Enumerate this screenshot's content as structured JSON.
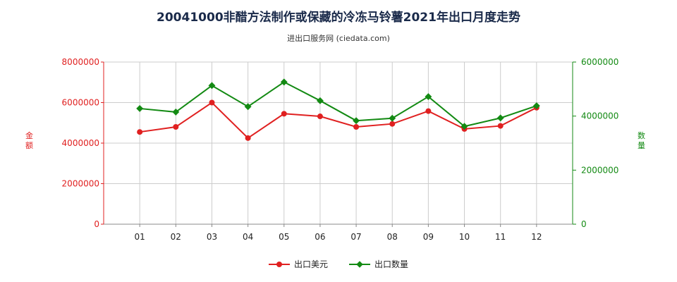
{
  "header": {
    "title": "20041000非醋方法制作或保藏的冷冻马铃薯2021年出口月度走势",
    "subtitle": "进出口服务网 (ciedata.com)"
  },
  "axes": {
    "left_label": "金额",
    "right_label": "数量"
  },
  "colors": {
    "left_series": "#e02020",
    "right_series": "#138a13",
    "grid": "#cccccc"
  },
  "chart_data": {
    "type": "line",
    "categories": [
      "01",
      "02",
      "03",
      "04",
      "05",
      "06",
      "07",
      "08",
      "09",
      "10",
      "11",
      "12"
    ],
    "series": [
      {
        "name": "出口美元",
        "axis": "left",
        "values": [
          4550000,
          4800000,
          6000000,
          4250000,
          5450000,
          5320000,
          4800000,
          4950000,
          5580000,
          4700000,
          4850000,
          5750000
        ]
      },
      {
        "name": "出口数量",
        "axis": "right",
        "values": [
          4280000,
          4150000,
          5130000,
          4350000,
          5260000,
          4570000,
          3830000,
          3920000,
          4720000,
          3620000,
          3930000,
          4380000
        ]
      }
    ],
    "y_left": {
      "min": 0,
      "max": 8000000,
      "ticks": [
        "0",
        "2000000",
        "4000000",
        "6000000",
        "8000000"
      ]
    },
    "y_right": {
      "min": 0,
      "max": 6000000,
      "ticks": [
        "0",
        "2000000",
        "4000000",
        "6000000"
      ]
    },
    "grid": true,
    "legend_position": "bottom-center"
  }
}
